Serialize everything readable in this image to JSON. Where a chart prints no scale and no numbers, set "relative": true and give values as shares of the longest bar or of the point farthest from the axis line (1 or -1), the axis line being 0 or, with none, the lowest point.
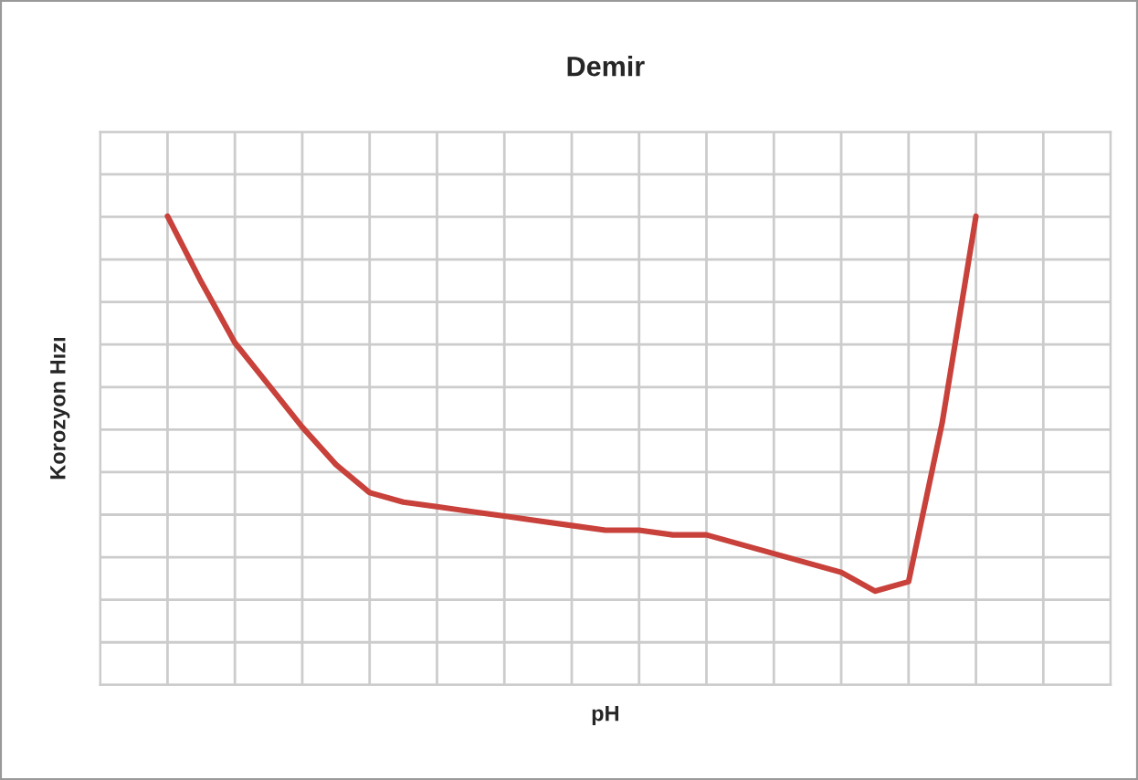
{
  "chart_data": {
    "type": "line",
    "title": "Demir",
    "xlabel": "pH",
    "ylabel": "Korozyon Hızı",
    "relative": true,
    "grid": true,
    "marker": "none",
    "line_style": "solid",
    "categories": [
      null,
      null,
      null,
      null,
      null,
      null,
      null,
      null,
      null,
      null,
      null,
      null,
      null,
      null,
      null,
      null,
      null,
      null,
      null,
      null,
      null,
      null,
      null,
      null,
      null
    ],
    "series": [
      {
        "color": "#c8413b",
        "values": [
          1.0,
          0.86,
          0.73,
          0.64,
          0.55,
          0.47,
          0.41,
          0.39,
          0.38,
          0.37,
          0.36,
          0.35,
          0.34,
          0.33,
          0.33,
          0.32,
          0.32,
          0.3,
          0.28,
          0.26,
          0.24,
          0.2,
          0.22,
          0.56,
          1.0
        ]
      }
    ]
  }
}
